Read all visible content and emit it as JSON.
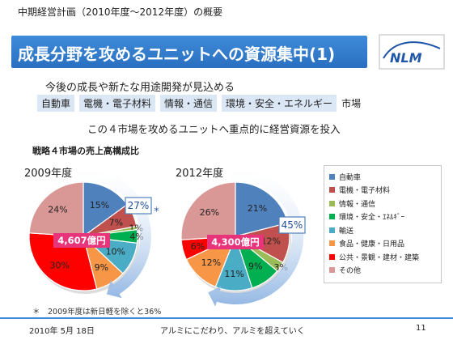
{
  "header": {
    "supertitle": "中期経営計画（2010年度～2012年度）の概要",
    "title": "成長分野を攻めるユニットへの資源集中(1)",
    "logo_text": "NLM"
  },
  "body": {
    "line1": "今後の成長や新たな用途開発が見込める",
    "markets": [
      "自動車",
      "電機・電子材料",
      "情報・通信",
      "環境・安全・エネルギー"
    ],
    "markets_suffix": "市場",
    "line2": "この４市場を攻めるユニットへ重点的に経営資源を投入"
  },
  "chart_data": {
    "type": "pie",
    "title": "戦略４市場の売上高構成比",
    "legend_position": "right",
    "categories": [
      "自動車",
      "電機・電子材料",
      "情報・通信",
      "環境・安全・ｴﾈﾙｷﾞｰ",
      "輸送",
      "食品・健康・日用品",
      "公共・景観・建材・建築",
      "その他"
    ],
    "colors": [
      "#4f81bd",
      "#c0504d",
      "#9bbb59",
      "#00b050",
      "#4bacc6",
      "#f79646",
      "#ff0000",
      "#d99795"
    ],
    "pies": [
      {
        "label": "2009年度",
        "total": "4,607億円",
        "values": [
          15,
          7,
          1,
          4,
          10,
          9,
          30,
          24
        ],
        "value_labels": [
          "15%",
          "7%",
          "1%",
          "4%",
          "10%",
          "9%",
          "30%",
          "24%"
        ],
        "strategic_share": "27%",
        "strategic_note_mark": "＊"
      },
      {
        "label": "2012年度",
        "total": "4,300億円",
        "values": [
          21,
          12,
          3,
          9,
          11,
          12,
          6,
          26
        ],
        "value_labels": [
          "21%",
          "12%",
          "3%",
          "9%",
          "11%",
          "12%",
          "6%",
          "26%"
        ],
        "strategic_share": "45%"
      }
    ]
  },
  "note": "＊　2009年度は新日軽を除くと36%",
  "footer": {
    "date": "2010年 5月 18日",
    "slogan": "アルミにこだわり、アルミを超えていく",
    "page": "11"
  }
}
